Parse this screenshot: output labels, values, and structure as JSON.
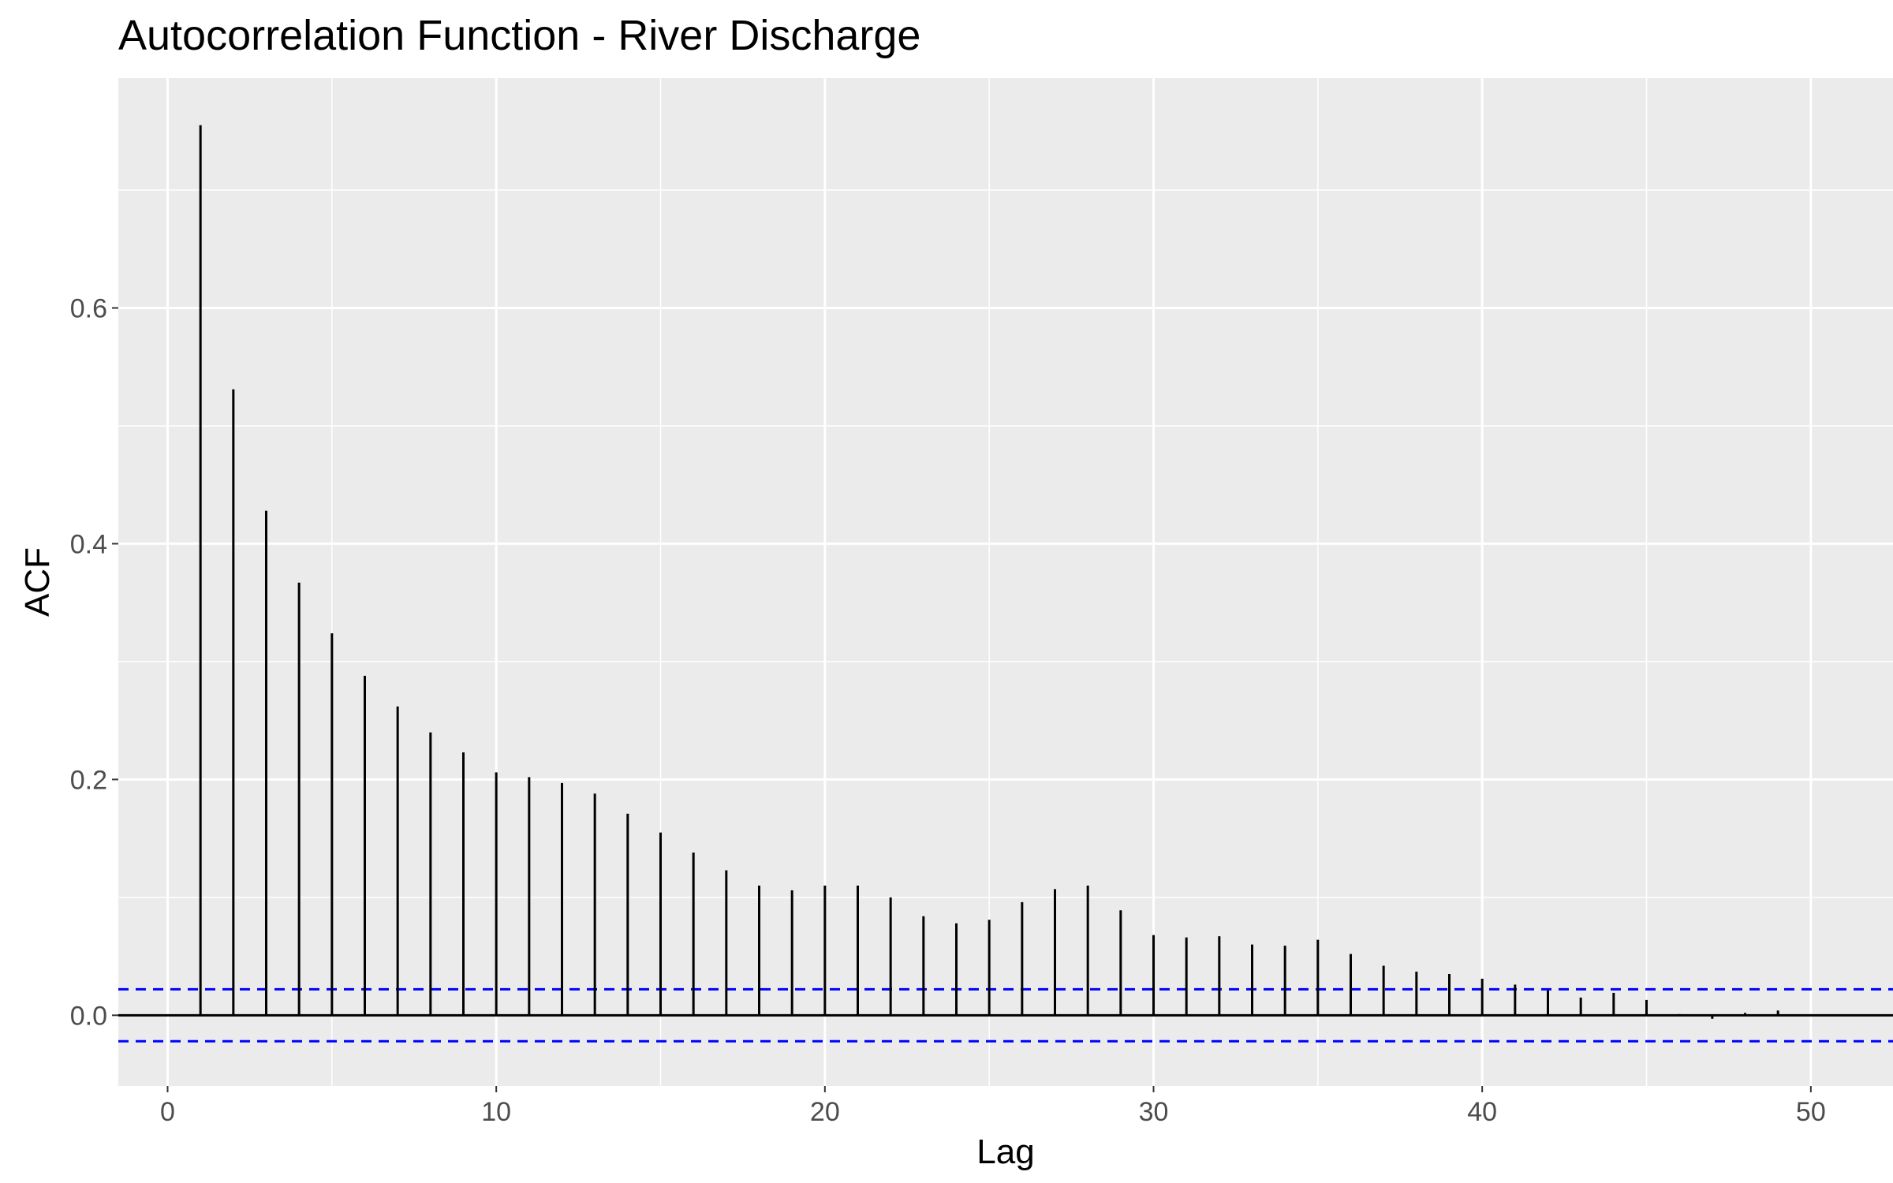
{
  "chart_data": {
    "type": "bar",
    "title": "Autocorrelation Function - River Discharge",
    "xlabel": "Lag",
    "ylabel": "ACF",
    "xlim": [
      -1.5,
      52.5
    ],
    "ylim": [
      -0.06,
      0.795
    ],
    "x_ticks": [
      0,
      10,
      20,
      30,
      40,
      50
    ],
    "y_ticks": [
      0.0,
      0.2,
      0.4,
      0.6
    ],
    "y_tick_labels": [
      "0.0",
      "0.2",
      "0.4",
      "0.6"
    ],
    "grid": true,
    "confidence_bounds": [
      0.022,
      -0.022
    ],
    "colors": {
      "panel_background": "#ebebeb",
      "grid": "#ffffff",
      "bars": "#000000",
      "confidence_line": "#0000ff",
      "tick_label": "#4d4d4d"
    },
    "x": [
      1,
      2,
      3,
      4,
      5,
      6,
      7,
      8,
      9,
      10,
      11,
      12,
      13,
      14,
      15,
      16,
      17,
      18,
      19,
      20,
      21,
      22,
      23,
      24,
      25,
      26,
      27,
      28,
      29,
      30,
      31,
      32,
      33,
      34,
      35,
      36,
      37,
      38,
      39,
      40,
      41,
      42,
      43,
      44,
      45,
      46,
      47,
      48,
      49
    ],
    "values": [
      0.755,
      0.531,
      0.428,
      0.367,
      0.324,
      0.288,
      0.262,
      0.24,
      0.223,
      0.206,
      0.202,
      0.197,
      0.188,
      0.171,
      0.155,
      0.138,
      0.123,
      0.11,
      0.106,
      0.11,
      0.11,
      0.1,
      0.084,
      0.078,
      0.081,
      0.096,
      0.107,
      0.11,
      0.089,
      0.068,
      0.066,
      0.067,
      0.06,
      0.059,
      0.064,
      0.052,
      0.042,
      0.037,
      0.035,
      0.031,
      0.026,
      0.021,
      0.015,
      0.019,
      0.013,
      0.001,
      -0.003,
      0.002,
      0.004
    ]
  }
}
